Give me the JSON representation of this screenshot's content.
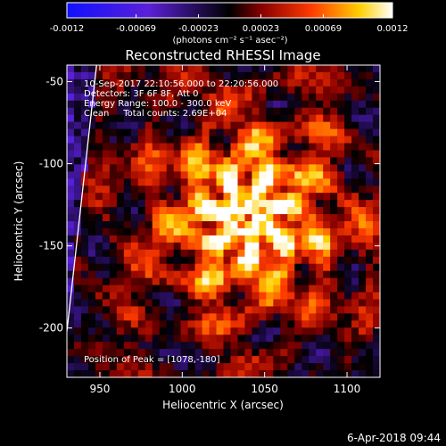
{
  "chart_data": {
    "type": "heatmap",
    "title": "Reconstructed RHESSI Image",
    "xlabel": "Heliocentric X (arcsec)",
    "ylabel": "Heliocentric Y (arcsec)",
    "xlim": [
      930,
      1120
    ],
    "ylim": [
      -230,
      -40
    ],
    "x_ticks": [
      950,
      1000,
      1050,
      1100
    ],
    "y_ticks": [
      -50,
      -100,
      -150,
      -200
    ],
    "grid": false,
    "colorbar": {
      "position": "top",
      "range": [
        -0.0012,
        0.0012
      ],
      "tick_values": [
        -0.0012,
        -0.00069,
        -0.00023,
        0.00023,
        0.00069,
        0.0012
      ],
      "tick_labels": [
        "-0.0012",
        "-0.00069",
        "-0.00023",
        "0.00023",
        "0.00069",
        "0.0012"
      ],
      "units_label": "(photons cm⁻² s⁻¹ asec⁻²)"
    },
    "peak": {
      "x": 1078,
      "y": -180
    },
    "limb_line": {
      "x": [
        930,
        948
      ],
      "y": [
        -202,
        -40
      ]
    },
    "annotations": [
      "10-Sep-2017 22:10:56.000 to 22:20:56.000",
      "Detectors: 3F 6F 8F, Att 0",
      "Energy Range: 100.0 - 300.0 keV",
      "Clean     Total counts: 2.69E+04",
      "Position of Peak = [1078,-180]"
    ]
  },
  "footer": {
    "timestamp": "6-Apr-2018 09:44"
  },
  "colors": {
    "background": "#000000",
    "text": "#ffffff",
    "cmap_low": "#0000ff",
    "cmap_mid": "#000000",
    "cmap_high": "#ffffff"
  }
}
